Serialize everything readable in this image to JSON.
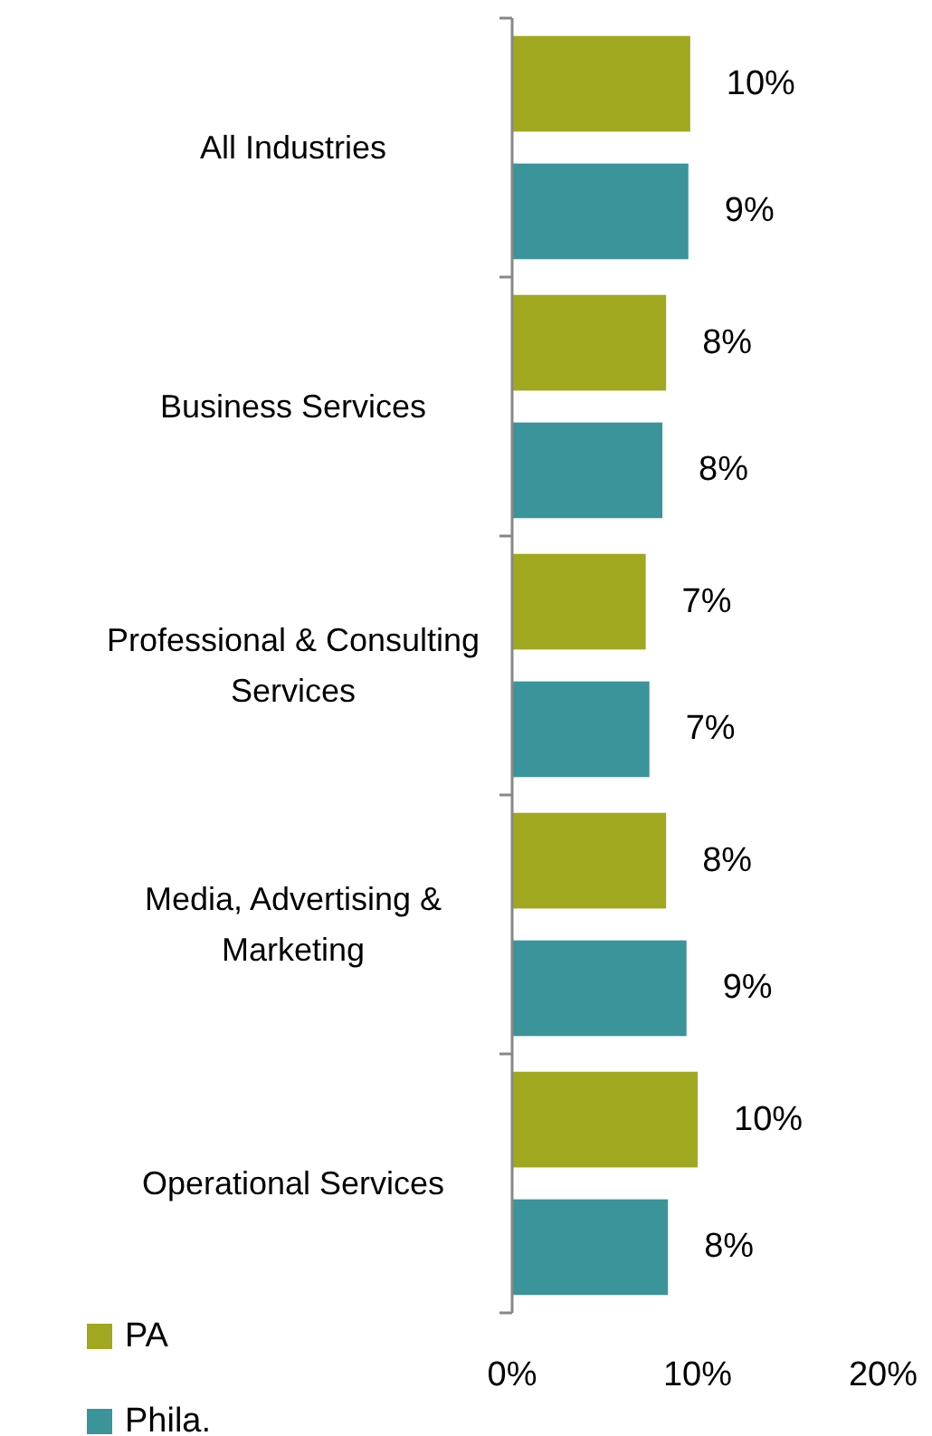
{
  "chart_data": {
    "type": "bar",
    "orientation": "horizontal",
    "categories": [
      "All Industries",
      "Business Services",
      "Professional & Consulting Services",
      "Media, Advertising & Marketing",
      "Operational Services"
    ],
    "series": [
      {
        "name": "PA",
        "color": "#9fa81e",
        "values": [
          9.6,
          8.3,
          7.2,
          8.3,
          10.0
        ],
        "value_labels": [
          "10%",
          "8%",
          "7%",
          "8%",
          "10%"
        ]
      },
      {
        "name": "Phila.",
        "color": "#3a9499",
        "values": [
          9.5,
          8.1,
          7.4,
          9.4,
          8.4
        ],
        "value_labels": [
          "9%",
          "8%",
          "7%",
          "9%",
          "8%"
        ]
      }
    ],
    "xlim": [
      0,
      20
    ],
    "xticks": [
      {
        "value": 0,
        "label": "0%"
      },
      {
        "value": 10,
        "label": "10%"
      },
      {
        "value": 20,
        "label": "20%"
      }
    ],
    "grid": false,
    "legend": "bottom left"
  }
}
